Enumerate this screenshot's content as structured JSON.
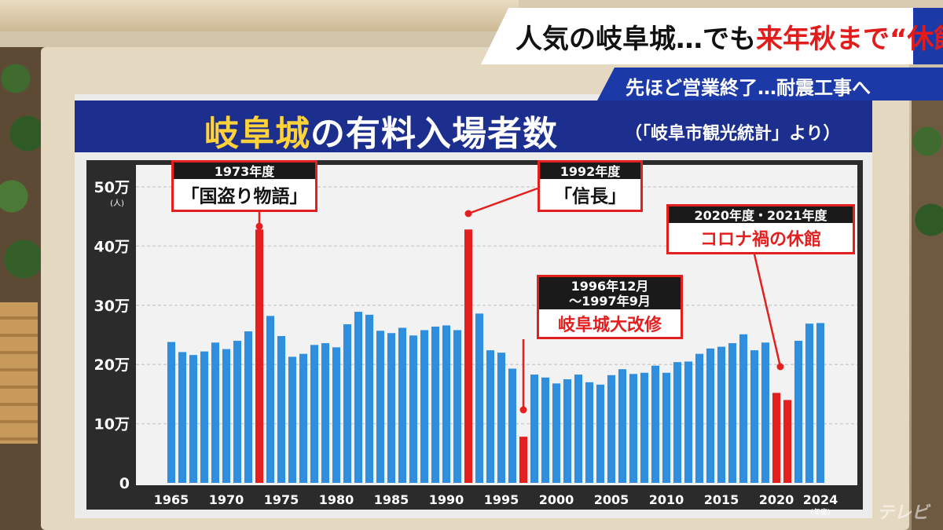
{
  "headline": {
    "main_prefix": "人気の岐阜城…でも",
    "main_highlight": "来年秋まで“休館”",
    "sub": "先ほど営業終了…耐震工事へ"
  },
  "channel_logo": "テレビ",
  "chart_data": {
    "type": "bar",
    "title_highlight": "岐阜城",
    "title_rest": "の有料入場者数",
    "source": "（「岐阜市観光統計」より）",
    "yunit": "(人)",
    "xunit": "(年度)",
    "ylim": [
      0,
      500000
    ],
    "yticks": [
      {
        "value": 0,
        "label": "0"
      },
      {
        "value": 100000,
        "label": "10万"
      },
      {
        "value": 200000,
        "label": "20万"
      },
      {
        "value": 300000,
        "label": "30万"
      },
      {
        "value": 400000,
        "label": "40万"
      },
      {
        "value": 500000,
        "label": "50万"
      }
    ],
    "xticks": [
      "1965",
      "1970",
      "1975",
      "1980",
      "1985",
      "1990",
      "1995",
      "2000",
      "2005",
      "2010",
      "2015",
      "2020",
      "2024"
    ],
    "grid": true,
    "colors": {
      "normal": "#2f8fde",
      "highlight": "#e41f1f",
      "title_bg": "#1c2f8f",
      "title_highlight": "#ffd23a"
    },
    "x": [
      1965,
      1966,
      1967,
      1968,
      1969,
      1970,
      1971,
      1972,
      1973,
      1974,
      1975,
      1976,
      1977,
      1978,
      1979,
      1980,
      1981,
      1982,
      1983,
      1984,
      1985,
      1986,
      1987,
      1988,
      1989,
      1990,
      1991,
      1992,
      1993,
      1994,
      1995,
      1996,
      1997,
      1998,
      1999,
      2000,
      2001,
      2002,
      2003,
      2004,
      2005,
      2006,
      2007,
      2008,
      2009,
      2010,
      2011,
      2012,
      2013,
      2014,
      2015,
      2016,
      2017,
      2018,
      2019,
      2020,
      2021,
      2022,
      2023,
      2024
    ],
    "values": [
      238000,
      221000,
      216000,
      222000,
      237000,
      226000,
      240000,
      256000,
      428000,
      282000,
      248000,
      213000,
      218000,
      233000,
      236000,
      229000,
      268000,
      289000,
      284000,
      257000,
      253000,
      262000,
      249000,
      258000,
      264000,
      266000,
      258000,
      428000,
      286000,
      224000,
      220000,
      193000,
      78000,
      183000,
      178000,
      168000,
      175000,
      183000,
      170000,
      166000,
      182000,
      192000,
      184000,
      186000,
      198000,
      186000,
      204000,
      205000,
      218000,
      227000,
      230000,
      236000,
      251000,
      224000,
      237000,
      152000,
      140000,
      240000,
      269000,
      270000
    ],
    "highlight_years": [
      1973,
      1992,
      1997,
      2020,
      2021
    ],
    "annotations": [
      {
        "year": 1973,
        "period": "1973年度",
        "label": "「国盗り物語」"
      },
      {
        "year": 1992,
        "period": "1992年度",
        "label": "「信長」"
      },
      {
        "year": 1997,
        "period": "1996年12月\n～1997年9月",
        "label": "岐阜城大改修"
      },
      {
        "year": 2020,
        "period": "2020年度・2021年度",
        "label": "コロナ禍の休館"
      }
    ]
  }
}
